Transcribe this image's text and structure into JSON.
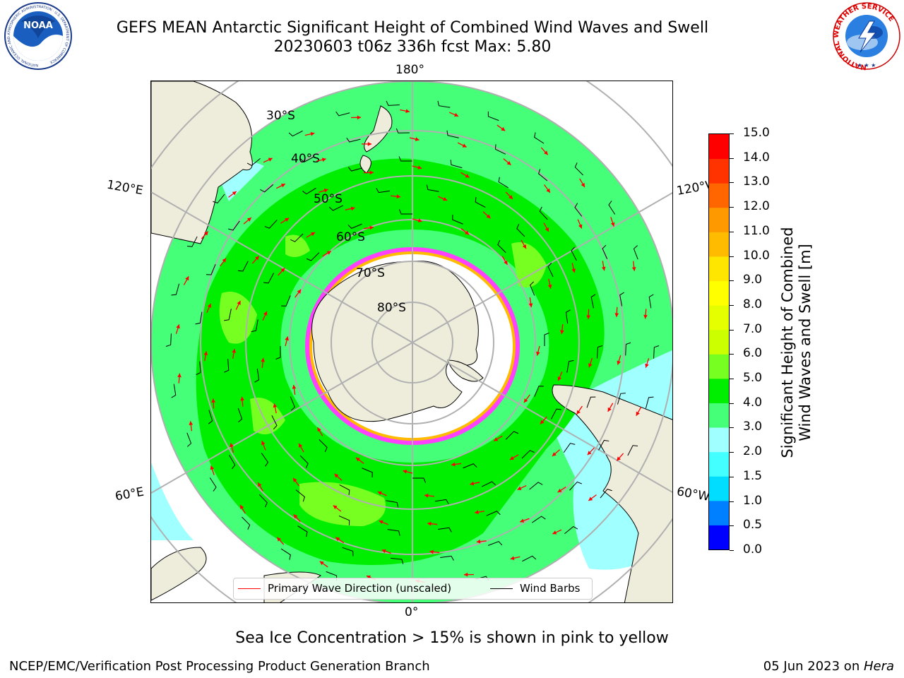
{
  "header": {
    "title_line1": "GEFS MEAN Antarctic Significant Height of Combined Wind Waves and Swell",
    "title_line2": "20230603 t06z 336h fcst   Max: 5.80"
  },
  "logos": {
    "noaa_text": "NOAA",
    "noaa_ring_text": "NATIONAL OCEANIC AND ATMOSPHERIC ADMINISTRATION · U.S. DEPARTMENT OF COMMERCE",
    "nws_ring_text": "NATIONAL WEATHER SERVICE"
  },
  "map": {
    "projection": "south-polar-stereographic",
    "longitude_labels": {
      "top": "180°",
      "bottom": "0°",
      "left_upper": "120°E",
      "left_lower": "60°E",
      "right_upper": "120°W",
      "right_lower": "60°W"
    },
    "latitude_labels": [
      "30°S",
      "40°S",
      "50°S",
      "60°S",
      "70°S",
      "80°S"
    ],
    "colors": {
      "land": "#eeecdb",
      "ice_edge": "#ff40ff",
      "grid": "#b0b0b0",
      "wave_arrow": "#ff0000",
      "wind_barb": "#000000"
    }
  },
  "legend": {
    "wave_direction_label": "Primary Wave Direction (unscaled)",
    "wind_barbs_label": "Wind Barbs"
  },
  "colorbar": {
    "label_line1": "Significant Height of Combined",
    "label_line2": "Wind Waves and Swell [m]",
    "levels": [
      {
        "from": 0.0,
        "to": 0.5,
        "color": "#0000ff"
      },
      {
        "from": 0.5,
        "to": 1.0,
        "color": "#007fff"
      },
      {
        "from": 1.0,
        "to": 1.5,
        "color": "#00ddff"
      },
      {
        "from": 1.5,
        "to": 2.0,
        "color": "#44ffff"
      },
      {
        "from": 2.0,
        "to": 3.0,
        "color": "#a0ffff"
      },
      {
        "from": 3.0,
        "to": 4.0,
        "color": "#44ff77"
      },
      {
        "from": 4.0,
        "to": 5.0,
        "color": "#00ee00"
      },
      {
        "from": 5.0,
        "to": 6.0,
        "color": "#77ff22"
      },
      {
        "from": 6.0,
        "to": 7.0,
        "color": "#ccff00"
      },
      {
        "from": 7.0,
        "to": 8.0,
        "color": "#e6ff00"
      },
      {
        "from": 8.0,
        "to": 9.0,
        "color": "#ffff00"
      },
      {
        "from": 9.0,
        "to": 10.0,
        "color": "#ffe600"
      },
      {
        "from": 10.0,
        "to": 11.0,
        "color": "#ffbb00"
      },
      {
        "from": 11.0,
        "to": 12.0,
        "color": "#ff9900"
      },
      {
        "from": 12.0,
        "to": 13.0,
        "color": "#ff6600"
      },
      {
        "from": 13.0,
        "to": 14.0,
        "color": "#ff3300"
      },
      {
        "from": 14.0,
        "to": 15.0,
        "color": "#ff0000"
      }
    ],
    "ticks": [
      "0.0",
      "0.5",
      "1.0",
      "1.5",
      "2.0",
      "3.0",
      "4.0",
      "5.0",
      "6.0",
      "7.0",
      "8.0",
      "9.0",
      "10.0",
      "11.0",
      "12.0",
      "13.0",
      "14.0",
      "15.0"
    ]
  },
  "notes": {
    "sea_ice": "Sea Ice Concentration > 15% is shown in pink to yellow"
  },
  "footer": {
    "left": "NCEP/EMC/Verification Post Processing Product Generation Branch",
    "right_date": "05 Jun 2023 on ",
    "right_host": "Hera"
  }
}
